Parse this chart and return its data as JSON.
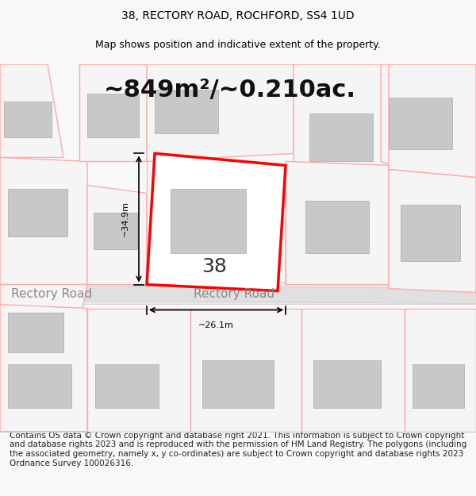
{
  "title": "38, RECTORY ROAD, ROCHFORD, SS4 1UD",
  "subtitle": "Map shows position and indicative extent of the property.",
  "area_text": "~849m²/~0.210ac.",
  "width_label": "~26.1m",
  "height_label": "~34.9m",
  "number_label": "38",
  "road_label": "Rectory Road",
  "footer_text": "Contains OS data © Crown copyright and database right 2021. This information is subject to Crown copyright and database rights 2023 and is reproduced with the permission of HM Land Registry. The polygons (including the associated geometry, namely x, y co-ordinates) are subject to Crown copyright and database rights 2023 Ordnance Survey 100026316.",
  "bg_color": "#f8f8f8",
  "map_bg": "#ffffff",
  "road_color": "#dddddd",
  "plot_outline_color": "#ff0000",
  "building_fill": "#d0d0d0",
  "neighbor_line_color": "#ffaaaa",
  "neighbor_fill": "#f5f5f5",
  "title_fontsize": 10,
  "subtitle_fontsize": 9,
  "area_fontsize": 22,
  "label_fontsize": 8,
  "number_fontsize": 18,
  "road_label_fontsize": 11,
  "footer_fontsize": 7.5
}
